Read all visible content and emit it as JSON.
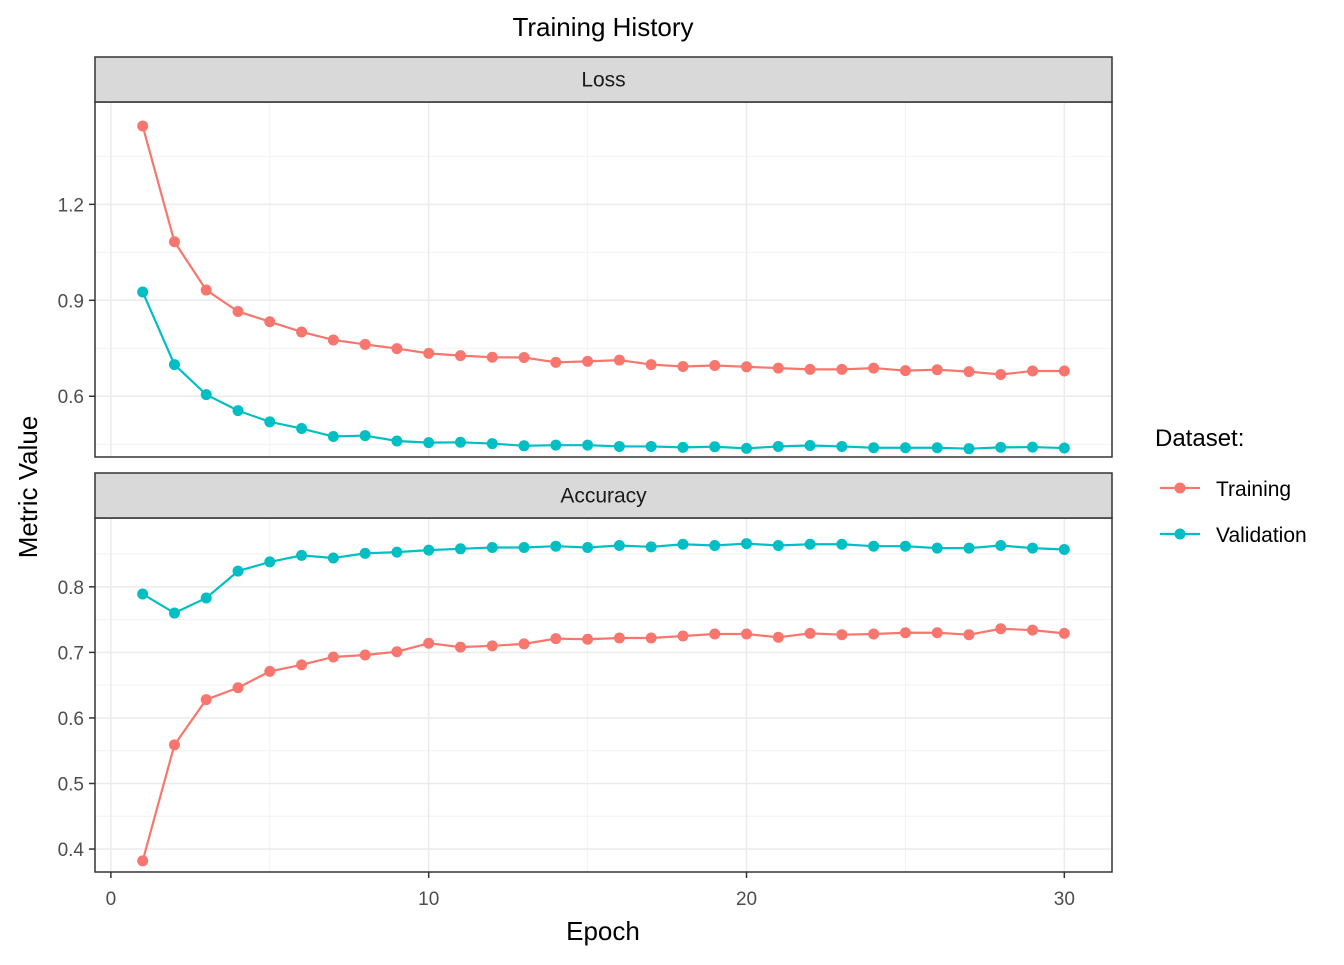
{
  "chart_data": {
    "type": "line",
    "title": "Training History",
    "xlabel": "Epoch",
    "ylabel": "Metric Value",
    "x": [
      1,
      2,
      3,
      4,
      5,
      6,
      7,
      8,
      9,
      10,
      11,
      12,
      13,
      14,
      15,
      16,
      17,
      18,
      19,
      20,
      21,
      22,
      23,
      24,
      25,
      26,
      27,
      28,
      29,
      30
    ],
    "xlim": [
      -0.5,
      31.5
    ],
    "xticks": [
      0,
      10,
      20,
      30
    ],
    "grid": true,
    "legend": {
      "title": "Dataset:",
      "position": "right",
      "entries": [
        "Training",
        "Validation"
      ]
    },
    "colors": {
      "Training": "#F8766D",
      "Validation": "#00BFC4"
    },
    "facets": [
      {
        "label": "Loss",
        "ylim": [
          0.41,
          1.52
        ],
        "yticks": [
          0.6,
          0.9,
          1.2
        ],
        "series": [
          {
            "name": "Training",
            "values": [
              1.445,
              1.083,
              0.932,
              0.865,
              0.833,
              0.801,
              0.776,
              0.762,
              0.749,
              0.734,
              0.727,
              0.722,
              0.721,
              0.706,
              0.709,
              0.713,
              0.699,
              0.693,
              0.696,
              0.692,
              0.688,
              0.684,
              0.684,
              0.688,
              0.68,
              0.683,
              0.677,
              0.668,
              0.679,
              0.679
            ]
          },
          {
            "name": "Validation",
            "values": [
              0.926,
              0.699,
              0.605,
              0.555,
              0.52,
              0.499,
              0.474,
              0.477,
              0.46,
              0.455,
              0.456,
              0.452,
              0.445,
              0.447,
              0.447,
              0.443,
              0.443,
              0.44,
              0.442,
              0.437,
              0.443,
              0.446,
              0.443,
              0.439,
              0.439,
              0.439,
              0.436,
              0.44,
              0.441,
              0.438
            ]
          }
        ]
      },
      {
        "label": "Accuracy",
        "ylim": [
          0.365,
          0.905
        ],
        "yticks": [
          0.4,
          0.5,
          0.6,
          0.7,
          0.8
        ],
        "series": [
          {
            "name": "Training",
            "values": [
              0.382,
              0.559,
              0.628,
              0.646,
              0.671,
              0.681,
              0.693,
              0.696,
              0.701,
              0.714,
              0.708,
              0.71,
              0.713,
              0.721,
              0.72,
              0.722,
              0.722,
              0.725,
              0.728,
              0.728,
              0.723,
              0.729,
              0.727,
              0.728,
              0.73,
              0.73,
              0.727,
              0.736,
              0.734,
              0.729
            ]
          },
          {
            "name": "Validation",
            "values": [
              0.789,
              0.76,
              0.783,
              0.824,
              0.838,
              0.848,
              0.844,
              0.851,
              0.853,
              0.856,
              0.858,
              0.86,
              0.86,
              0.862,
              0.86,
              0.863,
              0.861,
              0.865,
              0.863,
              0.866,
              0.863,
              0.865,
              0.865,
              0.862,
              0.862,
              0.859,
              0.859,
              0.863,
              0.859,
              0.857
            ]
          }
        ]
      }
    ]
  }
}
